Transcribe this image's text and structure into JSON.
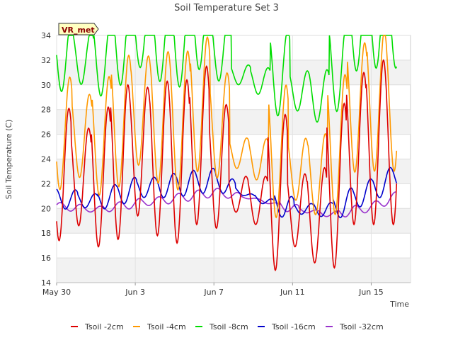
{
  "chart_data": {
    "type": "line",
    "title": "Soil Temperature Set 3",
    "site_badge": "VR_met",
    "xlabel": "Time",
    "ylabel": "Soil Temperature (C)",
    "ylim": [
      14,
      34
    ],
    "yticks": [
      14,
      16,
      18,
      20,
      22,
      24,
      26,
      28,
      30,
      32,
      34
    ],
    "xlim_days": [
      0,
      18
    ],
    "xticks": [
      {
        "day": 0,
        "label": "May 30"
      },
      {
        "day": 4,
        "label": "Jun 3"
      },
      {
        "day": 8,
        "label": "Jun 7"
      },
      {
        "day": 12,
        "label": "Jun 11"
      },
      {
        "day": 16,
        "label": "Jun 15"
      }
    ],
    "data_end_day": 17.3,
    "grid": true,
    "legend_position": "bottom",
    "daily_cycle": {
      "days": [
        0,
        1,
        2,
        3,
        4,
        5,
        6,
        7,
        8,
        9,
        10,
        11,
        12,
        13,
        14,
        15,
        16,
        17
      ],
      "min": [
        17.4,
        18.6,
        16.9,
        17.5,
        19.4,
        17.8,
        17.2,
        18.7,
        18.4,
        19.7,
        18.7,
        15.0,
        16.9,
        15.6,
        15.2,
        18.7,
        18.7,
        18.7
      ],
      "max": [
        28.1,
        26.5,
        28.2,
        30.0,
        29.8,
        30.3,
        30.4,
        31.5,
        28.4,
        22.6,
        22.6,
        27.6,
        22.8,
        23.3,
        28.5,
        31.0,
        32.0,
        32.0
      ]
    },
    "series": [
      {
        "name": "Tsoil -2cm",
        "color": "#dd0000",
        "amp_factor": 1.0,
        "lag_h": 0,
        "offset": 0
      },
      {
        "name": "Tsoil -4cm",
        "color": "#ff9900",
        "amp_factor": 0.85,
        "lag_h": 1.0,
        "offset": 0.2
      },
      {
        "name": "Tsoil -8cm",
        "color": "#00dd00",
        "amp_factor": 0.55,
        "lag_h": 3.0,
        "offset": 0.3
      },
      {
        "name": "Tsoil -16cm",
        "color": "#0000cc",
        "amp_factor": 0.18,
        "lag_h": 8.0,
        "offset": 0.0
      },
      {
        "name": "Tsoil -32cm",
        "color": "#9933cc",
        "amp_factor": 0.04,
        "lag_h": 14.0,
        "offset": 0.0
      }
    ],
    "deep_mean": {
      "days": [
        0,
        2,
        4,
        6,
        8,
        10,
        12,
        14,
        16,
        17.3
      ],
      "d16": [
        20.8,
        20.6,
        21.6,
        21.9,
        22.3,
        20.9,
        20.0,
        19.9,
        21.5,
        22.6
      ],
      "d32": [
        20.2,
        19.9,
        20.4,
        20.8,
        21.3,
        20.8,
        20.0,
        19.5,
        20.1,
        21.0
      ]
    }
  }
}
